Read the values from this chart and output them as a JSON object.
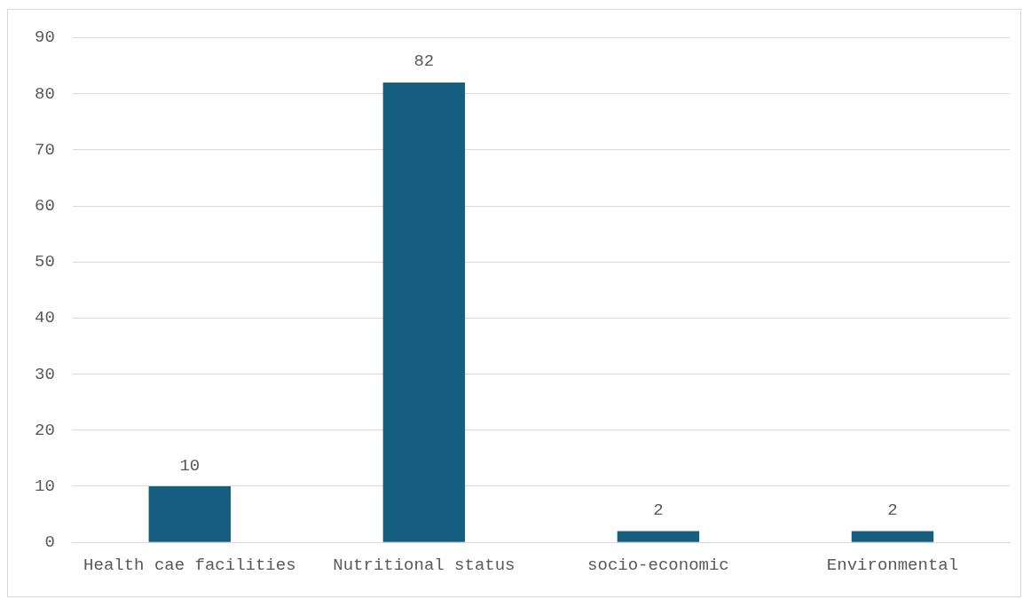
{
  "chart_data": {
    "type": "bar",
    "categories": [
      "Health cae facilities",
      "Nutritional status",
      "socio-economic",
      "Environmental"
    ],
    "values": [
      10,
      82,
      2,
      2
    ],
    "color": "#155e7f",
    "ylim": [
      0,
      90
    ],
    "yticks": [
      0,
      10,
      20,
      30,
      40,
      50,
      60,
      70,
      80,
      90
    ],
    "grid": "y",
    "data_labels": true
  }
}
